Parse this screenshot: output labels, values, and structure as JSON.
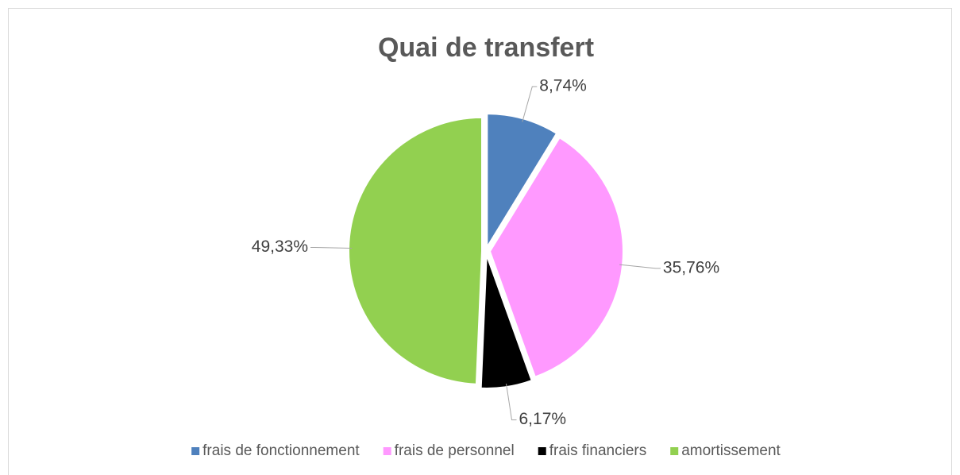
{
  "chart_data": {
    "type": "pie",
    "title": "Quai de transfert",
    "categories": [
      "frais de fonctionnement",
      "frais de personnel",
      "frais financiers",
      "amortissement"
    ],
    "values": [
      8.74,
      35.76,
      6.17,
      49.33
    ],
    "value_labels": [
      "8,74%",
      "35,76%",
      "6,17%",
      "49,33%"
    ],
    "colors": [
      "#4f81bd",
      "#ff99ff",
      "#000000",
      "#92d050"
    ],
    "legend": "bottom"
  }
}
